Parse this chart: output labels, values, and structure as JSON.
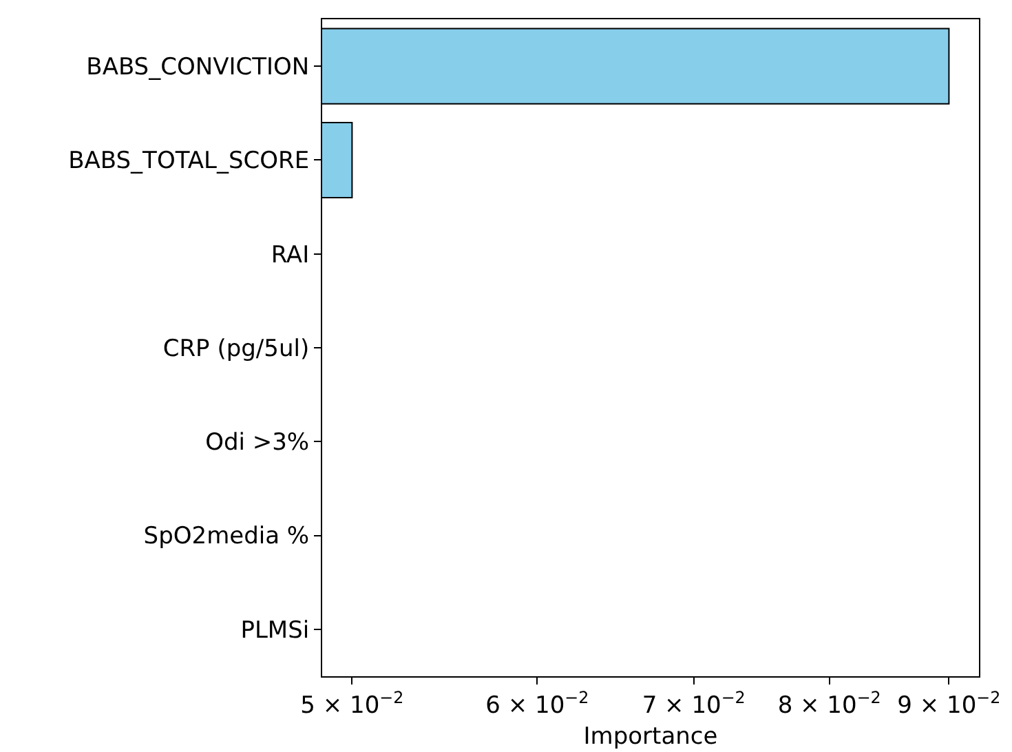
{
  "chart_data": {
    "type": "bar",
    "orientation": "horizontal",
    "log": "x",
    "xlabel": "Importance",
    "categories": [
      "BABS_CONVICTION",
      "BABS_TOTAL_SCORE",
      "RAI",
      "CRP (pg/5ul)",
      "Odi >3%",
      "SpO2media %",
      "PLMSi"
    ],
    "values": [
      0.09,
      0.05,
      null,
      null,
      null,
      null,
      null
    ],
    "color": "#87ceeb",
    "xlim": [
      0.04855,
      0.0927
    ],
    "xticks": [
      {
        "value": 0.05,
        "label": "5 × 10$^{−2}$"
      },
      {
        "value": 0.06,
        "label": "6 × 10$^{−2}$"
      },
      {
        "value": 0.07,
        "label": "7 × 10$^{−2}$"
      },
      {
        "value": 0.08,
        "label": "8 × 10$^{−2}$"
      },
      {
        "value": 0.09,
        "label": "9 × 10$^{−2}$"
      }
    ],
    "grid": false
  }
}
